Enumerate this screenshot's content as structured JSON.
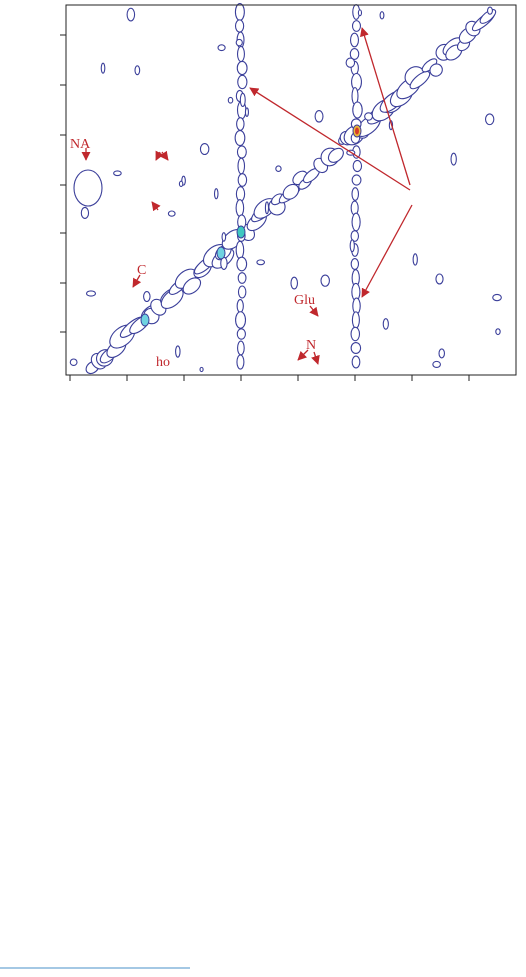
{
  "annotations": [
    {
      "label": "NA"
    },
    {
      "label": "C"
    },
    {
      "label": "Glu"
    },
    {
      "label": "N"
    },
    {
      "label": "ho"
    }
  ]
}
